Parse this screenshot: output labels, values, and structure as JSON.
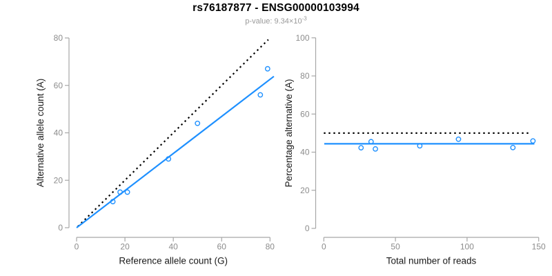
{
  "header": {
    "title": "rs76187877 - ENSG00000103994",
    "subtitle_prefix": "p-value: ",
    "subtitle_value": "9.34×10",
    "subtitle_exponent": "-3"
  },
  "style": {
    "point_color": "#1E90FF",
    "fit_line_color": "#1E90FF",
    "reference_line_color": "#000000",
    "axis_color": "#A6A6A6",
    "tick_label_color": "#8C8C8C",
    "axis_title_color": "#1A1A1A",
    "title_color": "#000000",
    "subtitle_color": "#999999",
    "background": "#FFFFFF"
  },
  "chart_data": [
    {
      "type": "scatter",
      "panel": "allele-counts",
      "title": "",
      "xlabel": "Reference allele count (G)",
      "ylabel": "Alternative allele count (A)",
      "xlim": [
        0,
        80
      ],
      "ylim": [
        0,
        80
      ],
      "xticks": [
        0,
        20,
        40,
        60,
        80
      ],
      "yticks": [
        0,
        20,
        40,
        60,
        80
      ],
      "grid": false,
      "legend": false,
      "points": [
        [
          15,
          11
        ],
        [
          18,
          15
        ],
        [
          21,
          15
        ],
        [
          38,
          29
        ],
        [
          50,
          44
        ],
        [
          76,
          56
        ],
        [
          79,
          67
        ]
      ],
      "lines": [
        {
          "name": "identity-line",
          "style": "dotted",
          "color": "#000000",
          "x1": 0.5,
          "y1": 0.5,
          "x2": 79.3,
          "y2": 79.3
        },
        {
          "name": "fit-line",
          "style": "solid",
          "color": "#1E90FF",
          "x1": 0,
          "y1": 0,
          "x2": 81.6,
          "y2": 63.8
        }
      ]
    },
    {
      "type": "scatter",
      "panel": "percentage-vs-reads",
      "title": "",
      "xlabel": "Total number of reads",
      "ylabel": "Percentage alternative (A)",
      "xlim": [
        0,
        150
      ],
      "ylim": [
        0,
        100
      ],
      "xticks": [
        0,
        50,
        100,
        150
      ],
      "yticks": [
        0,
        20,
        40,
        60,
        80,
        100
      ],
      "grid": false,
      "legend": false,
      "points": [
        [
          26,
          42.3
        ],
        [
          33,
          45.5
        ],
        [
          36,
          41.7
        ],
        [
          67,
          43.3
        ],
        [
          94,
          46.8
        ],
        [
          132,
          42.4
        ],
        [
          146,
          45.9
        ]
      ],
      "lines": [
        {
          "name": "expected-50-line",
          "style": "dotted",
          "color": "#000000",
          "x1": 0,
          "y1": 50,
          "x2": 144,
          "y2": 50
        },
        {
          "name": "mean-percentage-line",
          "style": "solid",
          "color": "#1E90FF",
          "x1": 0.3,
          "y1": 44.4,
          "x2": 147,
          "y2": 44.4
        }
      ]
    }
  ]
}
